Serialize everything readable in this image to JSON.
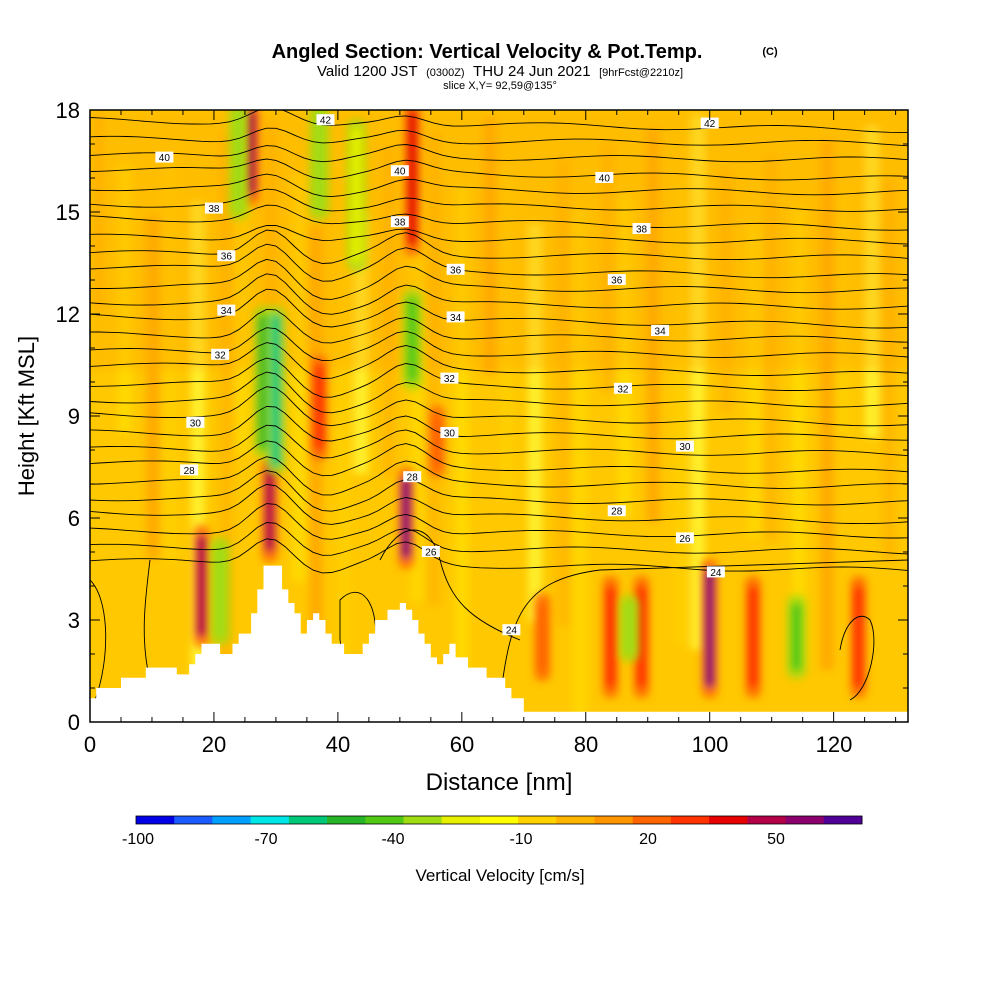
{
  "chart_data": {
    "type": "heatmap",
    "title": {
      "main": "Angled Section: Vertical Velocity & Pot.Temp.",
      "copyright": "(C)",
      "line2_a": "Valid 1200 JST",
      "line2_b": "(0300Z)",
      "line2_c": "THU 24 Jun 2021",
      "line2_d": "[9hrFcst@2210z]",
      "line3": "slice X,Y= 92,59@135°"
    },
    "xlabel": "Distance [nm]",
    "ylabel": "Height [Kft MSL]",
    "xlim": [
      0,
      132
    ],
    "ylim": [
      0,
      18
    ],
    "x_ticks": [
      "0",
      "20",
      "40",
      "60",
      "80",
      "100",
      "120"
    ],
    "y_ticks": [
      "0",
      "3",
      "6",
      "9",
      "12",
      "15",
      "18"
    ],
    "colorbar": {
      "label": "Vertical Velocity [cm/s]",
      "tick_labels": [
        "-100",
        "-70",
        "-40",
        "-10",
        "20",
        "50"
      ],
      "colors": [
        "#0000e6",
        "#1a5cff",
        "#00a0ff",
        "#00e6e6",
        "#00c878",
        "#28b428",
        "#50c814",
        "#a0dc14",
        "#e6f000",
        "#ffff00",
        "#ffd200",
        "#ffb400",
        "#ff9600",
        "#ff6400",
        "#ff3200",
        "#e60000",
        "#b40046",
        "#8c006e",
        "#500096"
      ]
    },
    "theta_contour_labels": [
      "24",
      "26",
      "28",
      "30",
      "32",
      "34",
      "36",
      "38",
      "40",
      "42"
    ],
    "updraft_columns": [
      {
        "x": 18,
        "y_range": [
          2.5,
          5.5
        ],
        "w": 55
      },
      {
        "x": 26,
        "y_range": [
          15.5,
          18
        ],
        "w": 60
      },
      {
        "x": 29,
        "y_range": [
          5.0,
          7.5
        ],
        "w": 55
      },
      {
        "x": 37,
        "y_range": [
          8.0,
          10.5
        ],
        "w": 35
      },
      {
        "x": 51,
        "y_range": [
          4.8,
          7.2
        ],
        "w": 70
      },
      {
        "x": 52,
        "y_range": [
          14.0,
          18
        ],
        "w": 45
      },
      {
        "x": 56,
        "y_range": [
          7.5,
          9.0
        ],
        "w": 30
      },
      {
        "x": 73,
        "y_range": [
          1.5,
          3.5
        ],
        "w": 30
      },
      {
        "x": 84,
        "y_range": [
          1.0,
          4.0
        ],
        "w": 40
      },
      {
        "x": 89,
        "y_range": [
          1.0,
          4.0
        ],
        "w": 35
      },
      {
        "x": 100,
        "y_range": [
          1.0,
          4.5
        ],
        "w": 70
      },
      {
        "x": 107,
        "y_range": [
          1.0,
          4.0
        ],
        "w": 40
      },
      {
        "x": 124,
        "y_range": [
          1.0,
          4.0
        ],
        "w": 35
      }
    ],
    "downdraft_columns": [
      {
        "x": 21,
        "y_range": [
          2.5,
          5.2
        ],
        "w": -30
      },
      {
        "x": 24,
        "y_range": [
          15.0,
          18
        ],
        "w": -25
      },
      {
        "x": 28,
        "y_range": [
          8.0,
          12.0
        ],
        "w": -45
      },
      {
        "x": 30,
        "y_range": [
          7.5,
          12.0
        ],
        "w": -60
      },
      {
        "x": 37,
        "y_range": [
          15.0,
          18
        ],
        "w": -30
      },
      {
        "x": 43,
        "y_range": [
          13.5,
          17.5
        ],
        "w": -20
      },
      {
        "x": 52,
        "y_range": [
          10.0,
          12.5
        ],
        "w": -35
      },
      {
        "x": 87,
        "y_range": [
          2.0,
          3.5
        ],
        "w": -30
      },
      {
        "x": 114,
        "y_range": [
          1.5,
          3.5
        ],
        "w": -35
      }
    ]
  }
}
